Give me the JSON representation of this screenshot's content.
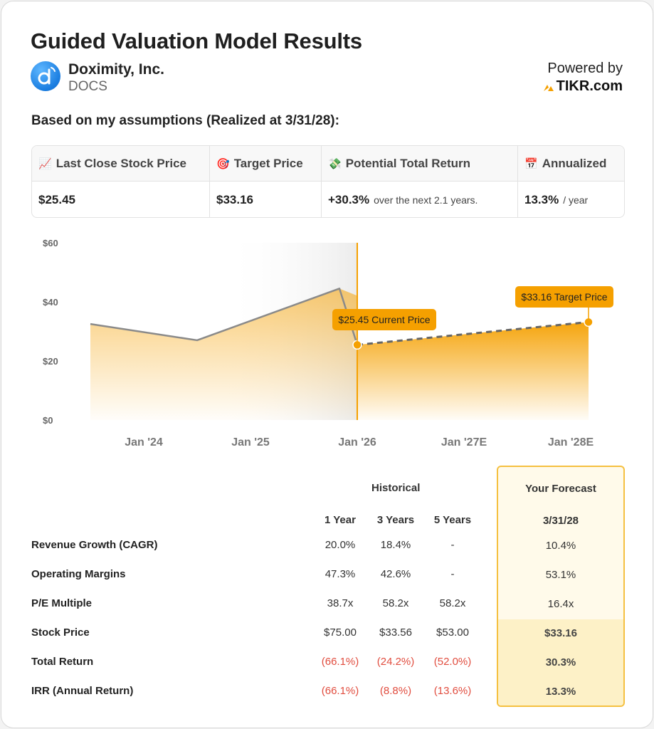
{
  "header": {
    "title": "Guided Valuation Model Results",
    "company": "Doximity, Inc.",
    "ticker": "DOCS",
    "powered_by": "Powered by",
    "brand": "TIKR.com",
    "assumptions": "Based on my assumptions (Realized at 3/31/28):"
  },
  "summary": {
    "headers": [
      {
        "icon": "📈",
        "label": "Last Close Stock Price"
      },
      {
        "icon": "🎯",
        "label": "Target Price"
      },
      {
        "icon": "💸",
        "label": "Potential Total Return"
      },
      {
        "icon": "📅",
        "label": "Annualized"
      }
    ],
    "last_close": "$25.45",
    "target": "$33.16",
    "total_return": "+30.3%",
    "total_return_sub": "over the next 2.1 years.",
    "annualized": "13.3%",
    "annualized_sub": "/ year"
  },
  "chart_data": {
    "type": "area",
    "y_ticks": [
      "$60",
      "$40",
      "$20",
      "$0"
    ],
    "ylim": [
      0,
      60
    ],
    "x_ticks": [
      "Jan '24",
      "Jan '25",
      "Jan '26",
      "Jan '27E",
      "Jan '28E"
    ],
    "historical": {
      "x": [
        "2023-07",
        "2024-07",
        "2025-11",
        "2026-01"
      ],
      "y": [
        32.5,
        27,
        44.5,
        25.45
      ]
    },
    "forecast": {
      "x": [
        "2026-01",
        "2028-03"
      ],
      "y": [
        25.45,
        33.16
      ]
    },
    "annotations": {
      "current": "$25.45 Current Price",
      "target": "$33.16 Target Price"
    },
    "colors": {
      "accent": "#f5a000",
      "line": "#8a8a8a",
      "shade": "#ececec"
    }
  },
  "table": {
    "historical_label": "Historical",
    "forecast_label": "Your Forecast",
    "columns": [
      "1 Year",
      "3 Years",
      "5 Years"
    ],
    "forecast_column": "3/31/28",
    "rows": [
      {
        "label": "Revenue Growth (CAGR)",
        "v": [
          "20.0%",
          "18.4%",
          "-"
        ],
        "f": "10.4%"
      },
      {
        "label": "Operating Margins",
        "v": [
          "47.3%",
          "42.6%",
          "-"
        ],
        "f": "53.1%"
      },
      {
        "label": "P/E Multiple",
        "v": [
          "38.7x",
          "58.2x",
          "58.2x"
        ],
        "f": "16.4x"
      },
      {
        "label": "Stock Price",
        "v": [
          "$75.00",
          "$33.56",
          "$53.00"
        ],
        "f": "$33.16"
      },
      {
        "label": "Total Return",
        "v": [
          "(66.1%)",
          "(24.2%)",
          "(52.0%)"
        ],
        "f": "30.3%"
      },
      {
        "label": "IRR (Annual Return)",
        "v": [
          "(66.1%)",
          "(8.8%)",
          "(13.6%)"
        ],
        "f": "13.3%"
      }
    ]
  }
}
